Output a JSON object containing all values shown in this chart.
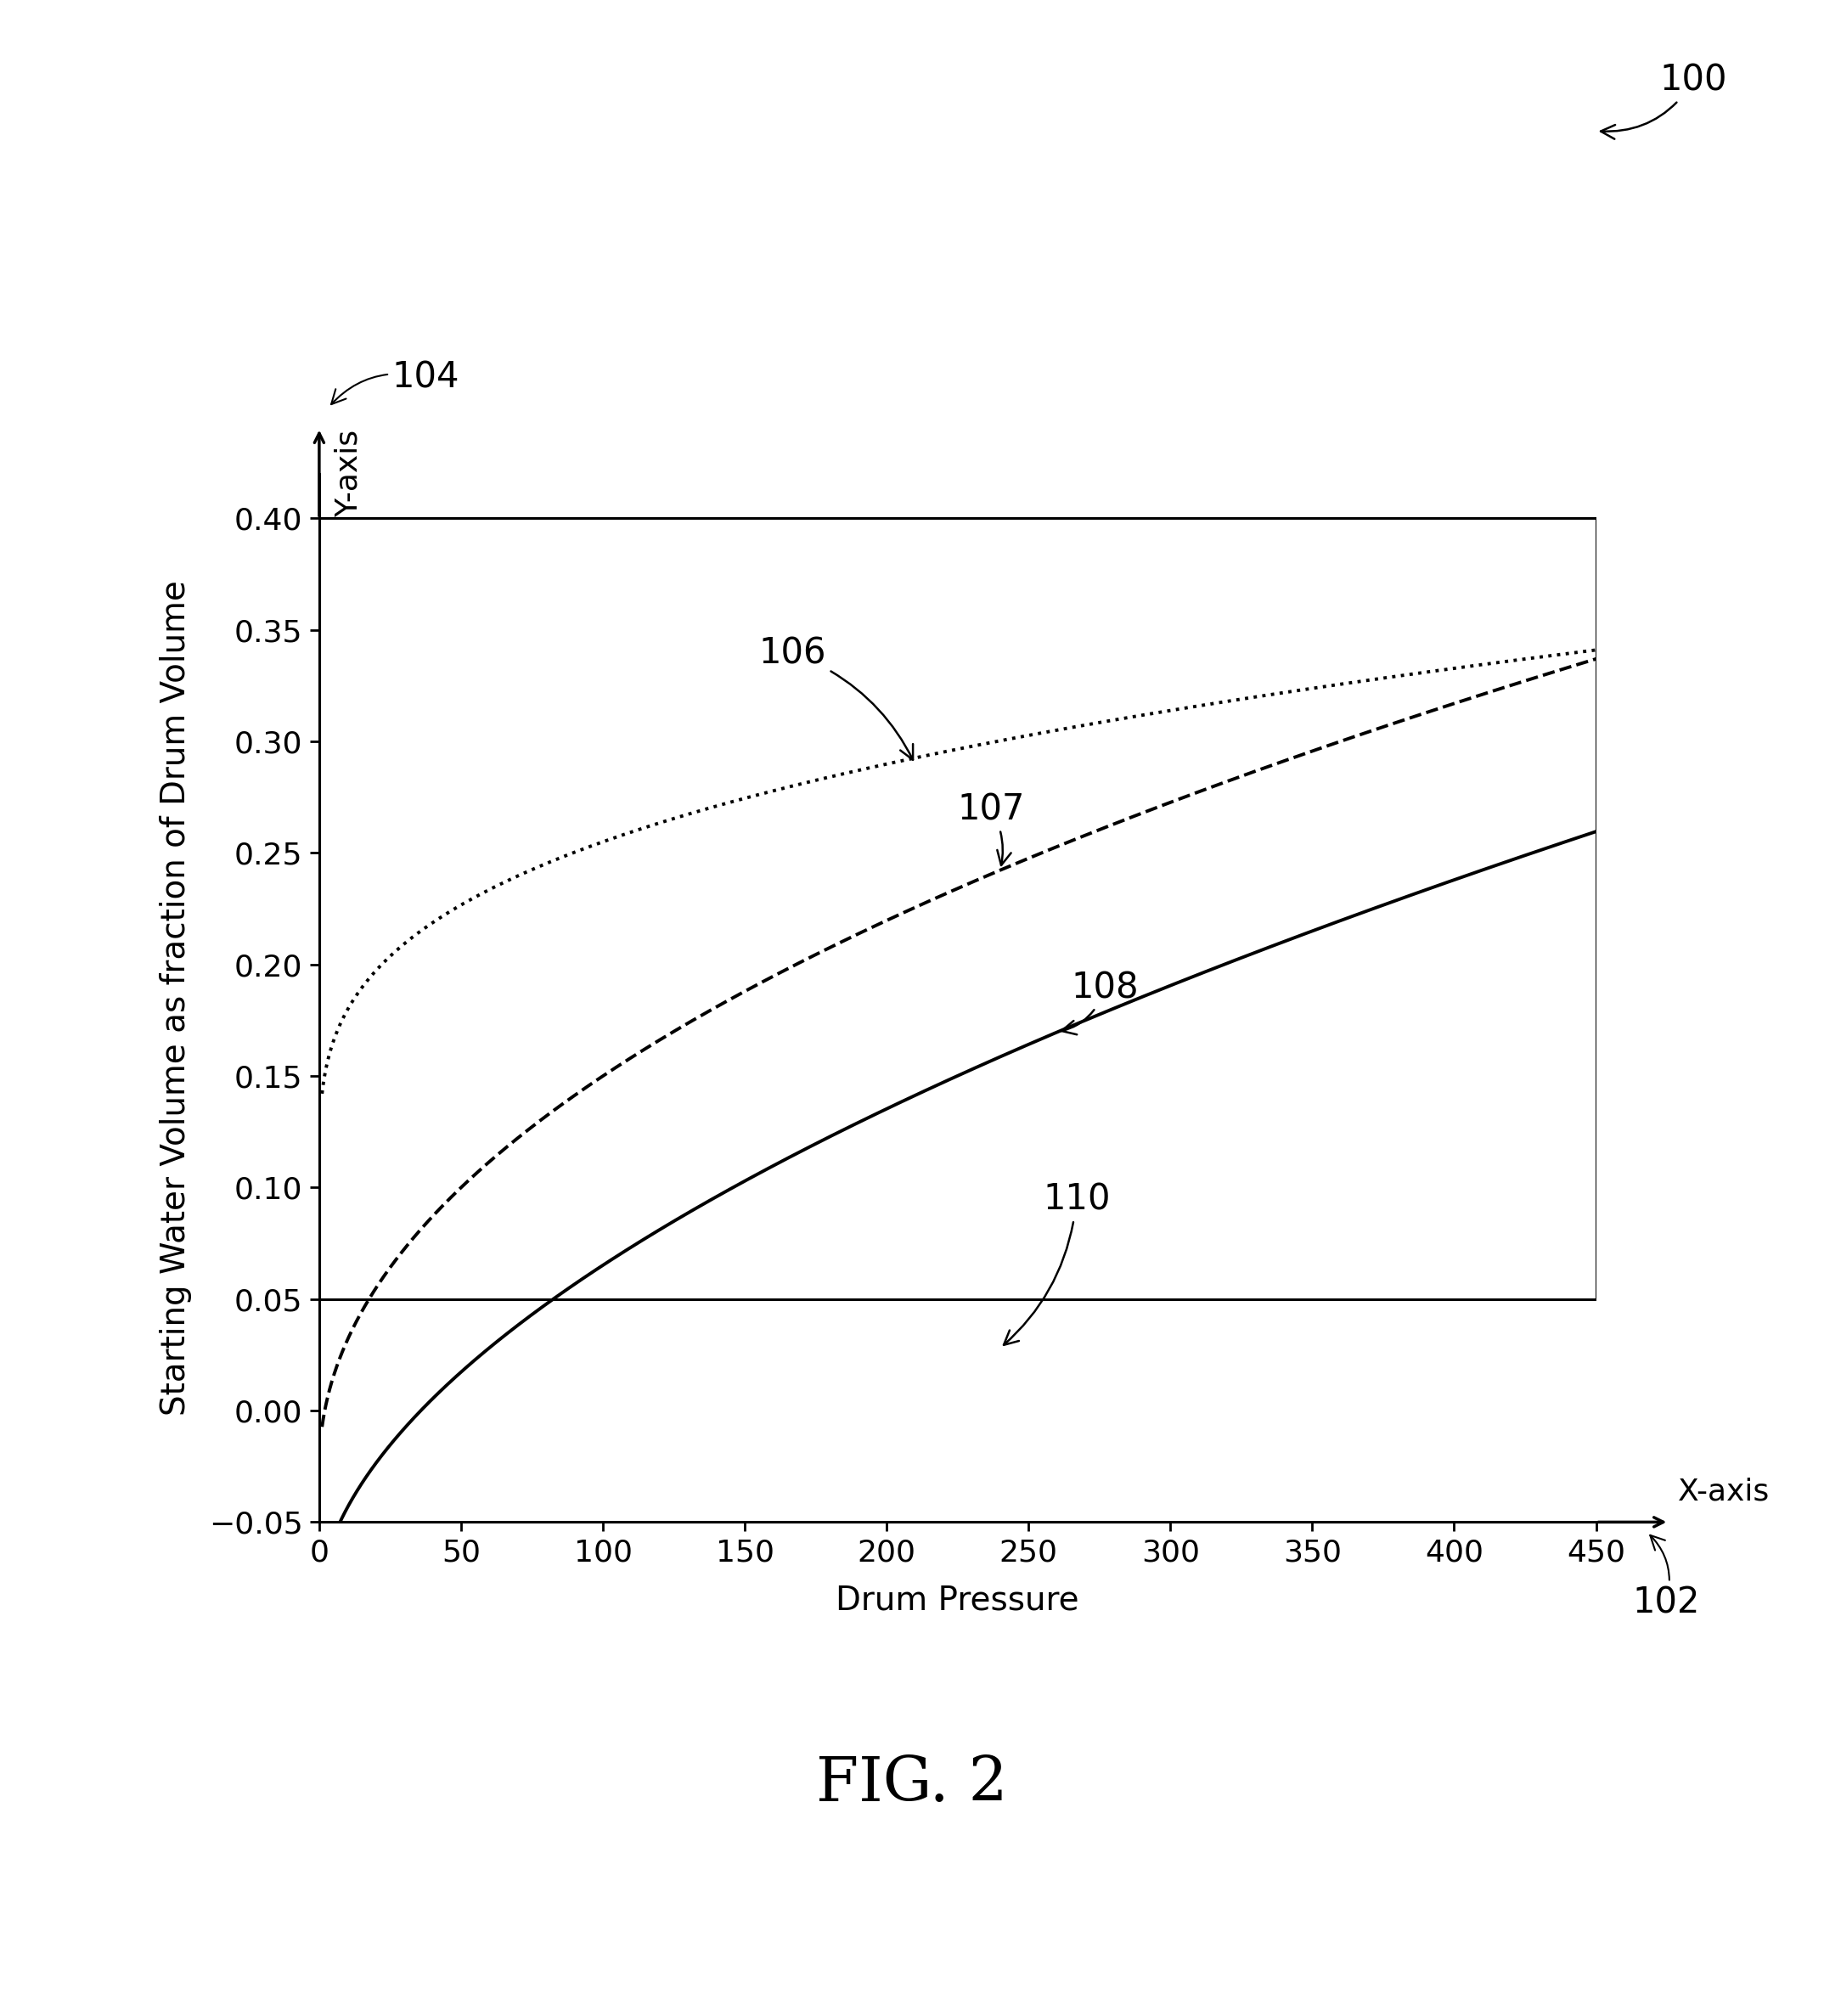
{
  "title": "FIG. 2",
  "xlabel": "Drum Pressure",
  "ylabel": "Starting Water Volume as fraction of Drum Volume",
  "xaxis_label": "X-axis",
  "yaxis_label": "Y-axis",
  "xlim": [
    0,
    450
  ],
  "ylim": [
    -0.05,
    0.42
  ],
  "xticks": [
    0,
    50,
    100,
    150,
    200,
    250,
    300,
    350,
    400,
    450
  ],
  "yticks": [
    -0.05,
    0.0,
    0.05,
    0.1,
    0.15,
    0.2,
    0.25,
    0.3,
    0.35,
    0.4
  ],
  "hline_y": 0.05,
  "hline_top_y": 0.4,
  "background_color": "#ffffff",
  "line_color": "#000000",
  "fontsize_title": 52,
  "fontsize_axis_label": 28,
  "fontsize_tick": 26,
  "fontsize_annotation": 30,
  "fontsize_yaxis_label": 26,
  "lw_curve": 2.8,
  "lw_hline": 2.2,
  "lw_border": 2.2,
  "curve106_A": 0.155,
  "curve106_B": 0.049,
  "curve106_C": 0.38,
  "curve107_start_x": 5,
  "curve107_start_y": 0.0,
  "curve107_end_y": 0.32,
  "curve108_start_y": -0.04,
  "curve108_end_y": 0.267
}
